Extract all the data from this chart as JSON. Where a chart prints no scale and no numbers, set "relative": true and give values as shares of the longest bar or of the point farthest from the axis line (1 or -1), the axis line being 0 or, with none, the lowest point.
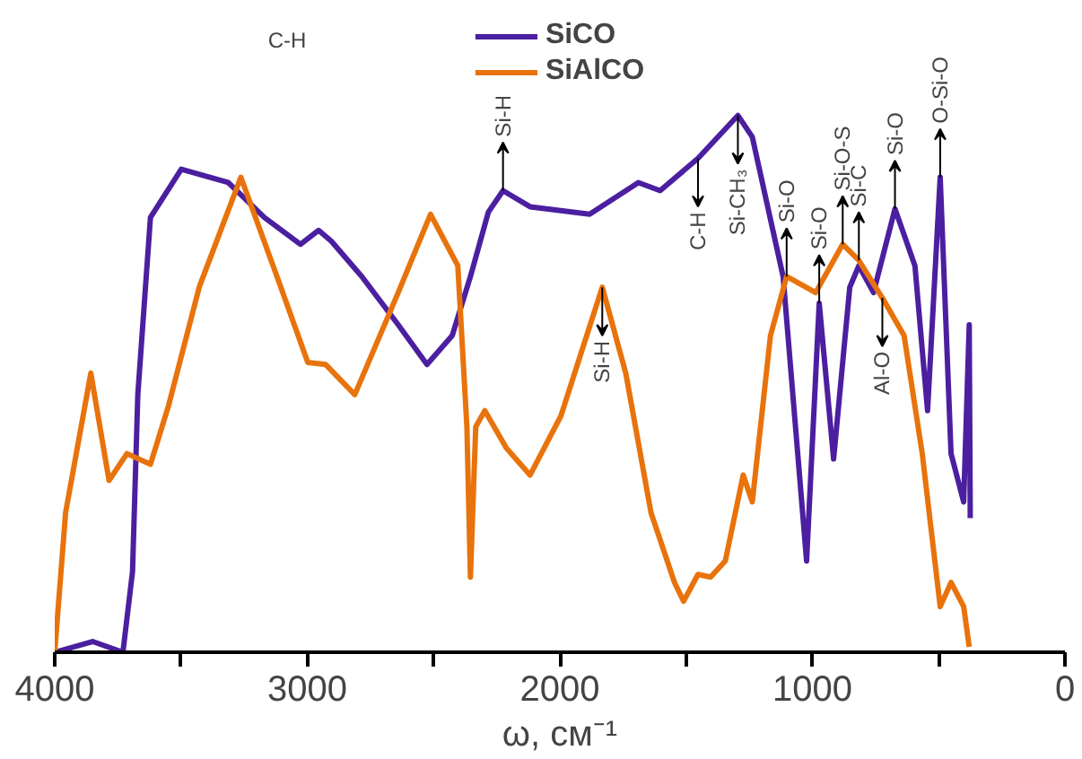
{
  "chart_data": {
    "type": "line",
    "relative": true,
    "xlabel": "ω, см⁻¹",
    "xlim": [
      4000,
      0
    ],
    "xticks": [
      4000,
      {
        "value": 3500,
        "label": null
      },
      3000,
      {
        "value": 2500,
        "label": null
      },
      2000,
      {
        "value": 1500,
        "label": null
      },
      1000,
      {
        "value": 500,
        "label": null
      },
      0
    ],
    "grid": false,
    "legend": "top",
    "line_style": "solid",
    "series": [
      {
        "name": "SiCO",
        "color": "#4b1fa0",
        "x": [
          4000,
          3850,
          3730,
          3692,
          3671,
          3621,
          3499,
          3313,
          3170,
          3027,
          2955,
          2905,
          2784,
          2640,
          2526,
          2426,
          2354,
          2283,
          2225,
          2118,
          1882,
          1689,
          1603,
          1453,
          1295,
          1238,
          1116,
          1023,
          973,
          916,
          852,
          816,
          758,
          673,
          594,
          544,
          494,
          451,
          401,
          379,
          375
        ],
        "values": [
          0,
          0.02,
          0,
          0.15,
          0.48,
          0.81,
          0.9,
          0.875,
          0.81,
          0.76,
          0.786,
          0.766,
          0.7,
          0.61,
          0.536,
          0.59,
          0.7,
          0.82,
          0.86,
          0.83,
          0.816,
          0.875,
          0.86,
          0.92,
          1,
          0.96,
          0.7,
          0.17,
          0.65,
          0.36,
          0.68,
          0.72,
          0.67,
          0.826,
          0.72,
          0.45,
          0.885,
          0.37,
          0.28,
          0.61,
          0.25
        ]
      },
      {
        "name": "SiAlCO",
        "color": "#e8730c",
        "x": [
          4000,
          3957,
          3857,
          3785,
          3714,
          3621,
          3549,
          3428,
          3263,
          3120,
          2998,
          2927,
          2812,
          2640,
          2512,
          2404,
          2368,
          2354,
          2333,
          2297,
          2211,
          2118,
          1996,
          1832,
          1739,
          1639,
          1546,
          1510,
          1453,
          1403,
          1345,
          1274,
          1238,
          1166,
          1102,
          987,
          880,
          816,
          723,
          637,
          565,
          494,
          451,
          401,
          379
        ],
        "values": [
          0,
          0.26,
          0.52,
          0.32,
          0.37,
          0.35,
          0.46,
          0.68,
          0.885,
          0.7,
          0.54,
          0.536,
          0.48,
          0.67,
          0.816,
          0.72,
          0.42,
          0.14,
          0.42,
          0.45,
          0.38,
          0.33,
          0.44,
          0.68,
          0.52,
          0.26,
          0.13,
          0.095,
          0.145,
          0.14,
          0.17,
          0.33,
          0.28,
          0.59,
          0.7,
          0.67,
          0.76,
          0.73,
          0.66,
          0.59,
          0.37,
          0.085,
          0.13,
          0.085,
          0.01
        ]
      }
    ],
    "annotations": [
      "C-H",
      {
        "text": "Si-H",
        "x": 2225,
        "y": 0.86
      },
      {
        "text": "Si-H",
        "x": 1832,
        "y": 0.68
      },
      {
        "text": "C-H",
        "x": 1453,
        "y": 0.92
      },
      {
        "text": "Si-CH₃",
        "x": 1295,
        "y": 1
      },
      {
        "text": "Si-O",
        "x": 1102,
        "y": 0.7
      },
      {
        "text": "Si-O",
        "x": 973,
        "y": 0.65
      },
      {
        "text": "Si-O-S",
        "x": 880,
        "y": 0.76
      },
      {
        "text": "Si-C",
        "x": 816,
        "y": 0.73
      },
      {
        "text": "Si-O",
        "x": 673,
        "y": 0.826
      },
      {
        "text": "O-Si-O",
        "x": 494,
        "y": 0.885
      },
      {
        "text": "Al-O",
        "x": 723,
        "y": 0.66
      }
    ]
  }
}
